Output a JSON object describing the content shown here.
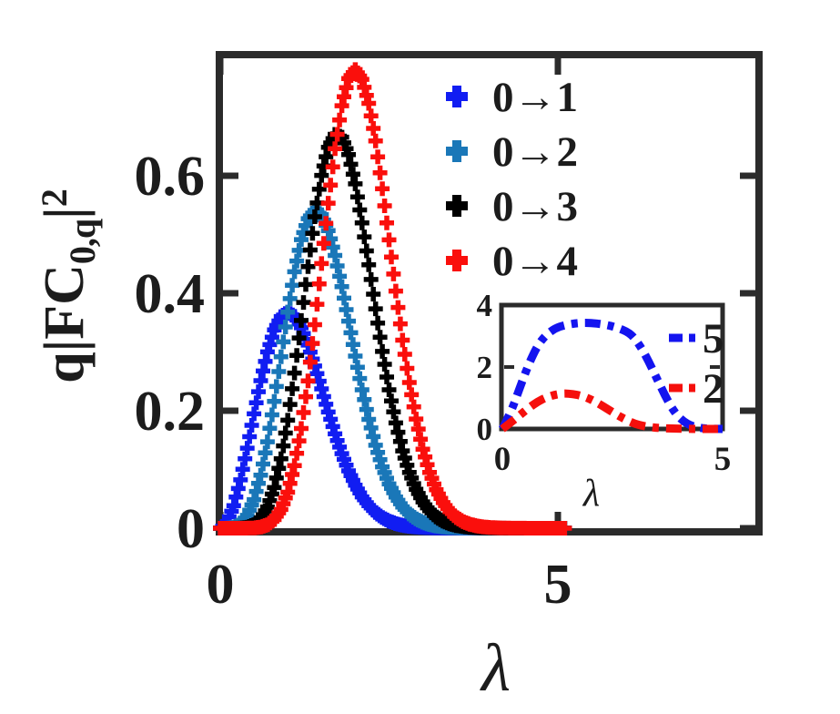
{
  "figure": {
    "background": "#ffffff",
    "frame_color": "#2b2b2b",
    "text_color": "#1c1c1c",
    "ylabel_prefix": "q|FC",
    "ylabel_sub": "0,q",
    "ylabel_bar": "|",
    "ylabel_sup": "2",
    "xlabel": "λ",
    "inset_xlabel": "λ"
  },
  "chart_data": [
    {
      "id": "main",
      "type": "scatter",
      "marker": "plus",
      "title": "",
      "xlabel": "λ",
      "ylabel": "q|FC_0,q|^2",
      "xlim": [
        0,
        8
      ],
      "ylim": [
        0,
        0.806
      ],
      "xticks": [
        0,
        5
      ],
      "xticklabels": [
        "0",
        "5"
      ],
      "yticks": [
        0,
        0.2,
        0.4,
        0.6
      ],
      "yticklabels": [
        "0",
        "0.2",
        "0.4",
        "0.6"
      ],
      "grid": false,
      "legend_position": "upper-right-inside",
      "x": [
        0,
        0.1,
        0.2,
        0.3,
        0.4,
        0.5,
        0.6,
        0.7,
        0.8,
        0.9,
        1.0,
        1.1,
        1.2,
        1.3,
        1.4,
        1.5,
        1.6,
        1.7,
        1.8,
        1.9,
        2.0,
        2.1,
        2.2,
        2.3,
        2.4,
        2.5,
        2.6,
        2.7,
        2.8,
        2.9,
        3.0,
        3.1,
        3.2,
        3.3,
        3.4,
        3.5,
        3.6,
        3.7,
        3.8,
        3.9,
        4.0,
        4.1,
        4.2,
        4.3,
        4.4,
        4.5,
        4.6,
        4.7,
        4.8,
        4.9,
        5.0,
        5.1
      ],
      "series": [
        {
          "name": "0→1",
          "color": "#111df2",
          "y": [
            0,
            0.0099,
            0.0384,
            0.0823,
            0.1363,
            0.1947,
            0.2512,
            0.3002,
            0.3375,
            0.3603,
            0.3679,
            0.3608,
            0.3412,
            0.3118,
            0.2761,
            0.2372,
            0.1979,
            0.1606,
            0.1269,
            0.0977,
            0.0733,
            0.0534,
            0.0383,
            0.0267,
            0.0181,
            0.0121,
            0.0078,
            0.005,
            0.0031,
            0.0019,
            0.0011,
            0.0007,
            0.0004,
            0.0002,
            0.0001,
            0.0001,
            0,
            0,
            0,
            0,
            0,
            0,
            0,
            0,
            0,
            0,
            0,
            0,
            0,
            0,
            0,
            0
          ]
        },
        {
          "name": "0→2",
          "color": "#1a77b8",
          "y": [
            0,
            0.0001,
            0.0015,
            0.0074,
            0.0218,
            0.0487,
            0.0904,
            0.1471,
            0.216,
            0.2919,
            0.3679,
            0.4366,
            0.4913,
            0.527,
            0.5411,
            0.5336,
            0.5066,
            0.4643,
            0.4111,
            0.3526,
            0.2931,
            0.2357,
            0.1853,
            0.1413,
            0.1045,
            0.0754,
            0.053,
            0.0361,
            0.0242,
            0.0158,
            0.01,
            0.0062,
            0.0037,
            0.0022,
            0.0013,
            0.0007,
            0.0004,
            0.0002,
            0.0001,
            0.0001,
            0,
            0,
            0,
            0,
            0,
            0,
            0,
            0,
            0,
            0,
            0,
            0
          ]
        },
        {
          "name": "0→3",
          "color": "#000000",
          "y": [
            0,
            0,
            0,
            0.0003,
            0.0017,
            0.0061,
            0.0163,
            0.036,
            0.0691,
            0.1182,
            0.1839,
            0.2642,
            0.3537,
            0.4454,
            0.5302,
            0.6006,
            0.6484,
            0.6705,
            0.6658,
            0.6361,
            0.5862,
            0.5197,
            0.4484,
            0.3735,
            0.3009,
            0.2356,
            0.1792,
            0.1317,
            0.0949,
            0.0663,
            0.0448,
            0.0297,
            0.0192,
            0.012,
            0.0074,
            0.0044,
            0.0026,
            0.0014,
            0.0008,
            0.0004,
            0.0002,
            0.0001,
            0.0001,
            0,
            0,
            0,
            0,
            0,
            0,
            0,
            0,
            0
          ]
        },
        {
          "name": "0→4",
          "color": "#fa0f0c",
          "y": [
            0,
            0,
            0,
            0,
            0.0001,
            0.0005,
            0.002,
            0.0059,
            0.0147,
            0.0319,
            0.0613,
            0.1065,
            0.1698,
            0.2509,
            0.3465,
            0.4505,
            0.5533,
            0.6461,
            0.7192,
            0.7654,
            0.7808,
            0.7642,
            0.7232,
            0.6593,
            0.5779,
            0.4908,
            0.4037,
            0.3201,
            0.248,
            0.1859,
            0.1345,
            0.0949,
            0.0654,
            0.0436,
            0.0284,
            0.018,
            0.011,
            0.0066,
            0.0039,
            0.0022,
            0.0012,
            0.0007,
            0.0004,
            0.0002,
            0.0001,
            0.0001,
            0,
            0,
            0,
            0,
            0,
            0
          ]
        }
      ]
    },
    {
      "id": "inset",
      "type": "line",
      "line_style": "dash-dot",
      "xlabel": "λ",
      "xlim": [
        0,
        5
      ],
      "ylim": [
        0,
        4
      ],
      "xticks": [
        0,
        5
      ],
      "xticklabels": [
        "0",
        "5"
      ],
      "yticks": [
        0,
        2,
        4
      ],
      "yticklabels": [
        "0",
        "2",
        "4"
      ],
      "grid": false,
      "legend_position": "right-inside",
      "series": [
        {
          "name": "5",
          "color": "#1414ef",
          "x": [
            0,
            0.2,
            0.4,
            0.6,
            0.8,
            1.0,
            1.2,
            1.4,
            1.7,
            2.0,
            2.3,
            2.6,
            2.9,
            3.1,
            3.3,
            3.5,
            3.7,
            3.9,
            4.1,
            4.3,
            4.5,
            4.7,
            5.0
          ],
          "y": [
            0,
            0.55,
            1.35,
            2.1,
            2.7,
            3.05,
            3.25,
            3.35,
            3.42,
            3.43,
            3.38,
            3.28,
            3.1,
            2.75,
            2.25,
            1.65,
            1.05,
            0.55,
            0.25,
            0.09,
            0.03,
            0.01,
            0
          ]
        },
        {
          "name": "2",
          "color": "#f50f0c",
          "x": [
            0,
            0.2,
            0.4,
            0.6,
            0.8,
            1.0,
            1.2,
            1.4,
            1.6,
            1.8,
            2.0,
            2.2,
            2.4,
            2.6,
            2.8,
            3.0,
            3.2,
            3.5,
            4.0,
            4.5,
            5.0
          ],
          "y": [
            0,
            0.22,
            0.45,
            0.68,
            0.88,
            1.02,
            1.11,
            1.15,
            1.13,
            1.07,
            0.96,
            0.81,
            0.63,
            0.46,
            0.3,
            0.17,
            0.09,
            0.03,
            0.01,
            0,
            0
          ]
        }
      ]
    }
  ]
}
